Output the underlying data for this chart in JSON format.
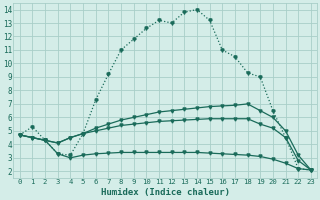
{
  "xlabel": "Humidex (Indice chaleur)",
  "x_ticks": [
    0,
    1,
    2,
    3,
    4,
    5,
    6,
    7,
    8,
    9,
    10,
    11,
    12,
    13,
    14,
    15,
    16,
    17,
    18,
    19,
    20,
    21,
    22,
    23
  ],
  "y_ticks": [
    2,
    3,
    4,
    5,
    6,
    7,
    8,
    9,
    10,
    11,
    12,
    13,
    14
  ],
  "xlim": [
    -0.5,
    23.5
  ],
  "ylim": [
    1.5,
    14.5
  ],
  "bg_color": "#d4ede8",
  "grid_color": "#a8cfc8",
  "line_color": "#1a6b5a",
  "series": [
    [
      4.7,
      5.3,
      4.3,
      3.3,
      3.2,
      4.8,
      7.3,
      9.2,
      11.0,
      11.8,
      12.6,
      13.2,
      13.0,
      13.8,
      14.0,
      13.2,
      11.0,
      10.5,
      9.3,
      9.0,
      6.5,
      4.5,
      2.2,
      2.1
    ],
    [
      4.7,
      4.5,
      4.3,
      4.1,
      4.5,
      4.8,
      5.2,
      5.5,
      5.8,
      6.0,
      6.2,
      6.4,
      6.5,
      6.6,
      6.7,
      6.8,
      6.85,
      6.9,
      7.0,
      6.5,
      6.0,
      5.0,
      3.2,
      2.1
    ],
    [
      4.7,
      4.5,
      4.3,
      4.1,
      4.5,
      4.8,
      5.0,
      5.2,
      5.4,
      5.5,
      5.6,
      5.7,
      5.75,
      5.8,
      5.85,
      5.9,
      5.9,
      5.9,
      5.9,
      5.5,
      5.2,
      4.5,
      2.8,
      2.1
    ],
    [
      4.7,
      4.5,
      4.3,
      3.3,
      3.0,
      3.2,
      3.3,
      3.35,
      3.4,
      3.4,
      3.4,
      3.4,
      3.4,
      3.4,
      3.4,
      3.35,
      3.3,
      3.25,
      3.2,
      3.1,
      2.9,
      2.6,
      2.2,
      2.1
    ]
  ]
}
